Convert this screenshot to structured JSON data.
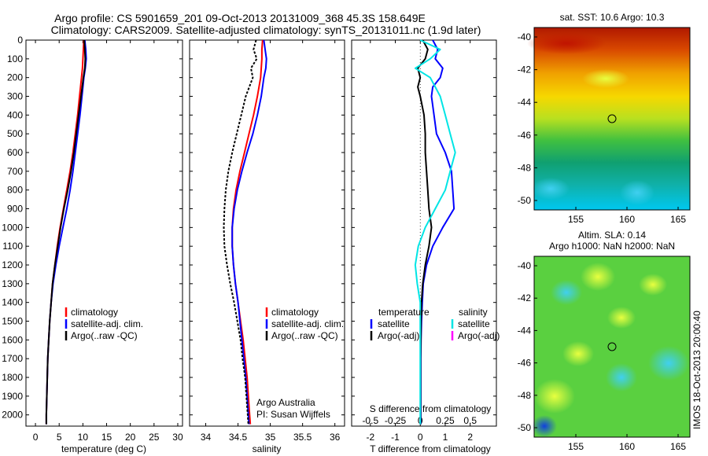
{
  "header": {
    "title_line1": "Argo profile: CS 5901659_201 09-Oct-2013 20131009_368 45.3S 158.649E",
    "title_line2": "Climatology: CARS2009. Satellite-adjusted climatology: synTS_20131011.nc (1.9d later)"
  },
  "colors": {
    "climatology": "#ff0000",
    "satellite": "#0000ff",
    "argo": "#000000",
    "sal_sat": "#00e5e5",
    "sal_argo": "#ff00ff"
  },
  "chart_data": [
    {
      "type": "line",
      "id": "temperature",
      "xlabel": "temperature (deg C)",
      "xlim": [
        -2,
        31
      ],
      "ylim": [
        2060,
        0
      ],
      "xticks": [
        0,
        5,
        10,
        15,
        20,
        25,
        30
      ],
      "yticks": [
        0,
        100,
        200,
        300,
        400,
        500,
        600,
        700,
        800,
        900,
        1000,
        1100,
        1200,
        1300,
        1400,
        1500,
        1600,
        1700,
        1800,
        1900,
        2000
      ],
      "legend": [
        "climatology",
        "satellite-adj. clim.",
        "Argo(..raw -QC)"
      ],
      "series": [
        {
          "name": "climatology",
          "color": "#ff0000",
          "depth": [
            0,
            50,
            100,
            150,
            200,
            300,
            400,
            500,
            600,
            700,
            800,
            900,
            1000,
            1100,
            1200,
            1300,
            1400,
            1500,
            1600,
            1700,
            1800,
            1900,
            2000,
            2050
          ],
          "values": [
            10.2,
            10.1,
            10,
            9.9,
            9.7,
            9.3,
            8.9,
            8.4,
            7.9,
            7.3,
            6.6,
            5.9,
            5.2,
            4.6,
            4.1,
            3.6,
            3.3,
            3,
            2.8,
            2.6,
            2.5,
            2.4,
            2.3,
            2.3
          ]
        },
        {
          "name": "satellite",
          "color": "#0000ff",
          "depth": [
            0,
            50,
            100,
            150,
            200,
            300,
            400,
            500,
            600,
            700,
            800,
            900,
            1000,
            1100,
            1200,
            1300,
            1400,
            1500,
            1600,
            1700,
            1800,
            1900,
            2000,
            2050
          ],
          "values": [
            10.4,
            10.6,
            10.7,
            10.5,
            10.2,
            9.8,
            9.4,
            8.9,
            8.4,
            7.9,
            7.3,
            6.6,
            5.8,
            5,
            4.3,
            3.7,
            3.3,
            3,
            2.8,
            2.6,
            2.5,
            2.4,
            2.3,
            2.3
          ]
        },
        {
          "name": "argo",
          "color": "#000000",
          "depth": [
            0,
            50,
            100,
            150,
            200,
            300,
            400,
            500,
            600,
            700,
            800,
            900,
            1000,
            1100,
            1200,
            1300,
            1400,
            1500,
            1600,
            1700,
            1800,
            1900,
            2000,
            2050
          ],
          "values": [
            10.3,
            10.4,
            10.5,
            10.4,
            10.1,
            9.6,
            9.1,
            8.6,
            8.1,
            7.5,
            6.8,
            6,
            5.3,
            4.7,
            4.1,
            3.6,
            3.3,
            3,
            2.8,
            2.6,
            2.5,
            2.4,
            2.3,
            2.3
          ]
        }
      ]
    },
    {
      "type": "line",
      "id": "salinity",
      "xlabel": "salinity",
      "xlim": [
        33.75,
        36.15
      ],
      "ylim": [
        2060,
        0
      ],
      "xticks": [
        34,
        34.5,
        35,
        35.5,
        36
      ],
      "xticklabels": [
        "34",
        "34.5",
        "35",
        "35.5",
        "36"
      ],
      "legend": [
        "climatology",
        "satellite-adj. clim.",
        "Argo(..raw -QC)"
      ],
      "annotation": [
        "Argo Australia",
        "PI: Susan Wijffels"
      ],
      "series": [
        {
          "name": "climatology",
          "color": "#ff0000",
          "depth": [
            0,
            50,
            100,
            150,
            200,
            300,
            400,
            500,
            600,
            700,
            800,
            900,
            1000,
            1100,
            1200,
            1300,
            1400,
            1500,
            1600,
            1700,
            1800,
            1900,
            2000,
            2050
          ],
          "values": [
            34.88,
            34.87,
            34.87,
            34.86,
            34.85,
            34.8,
            34.74,
            34.67,
            34.6,
            34.53,
            34.47,
            34.43,
            34.41,
            34.41,
            34.43,
            34.46,
            34.5,
            34.54,
            34.58,
            34.61,
            34.64,
            34.66,
            34.68,
            34.69
          ]
        },
        {
          "name": "satellite",
          "color": "#0000ff",
          "depth": [
            0,
            50,
            100,
            150,
            200,
            300,
            400,
            500,
            600,
            700,
            800,
            900,
            1000,
            1100,
            1200,
            1300,
            1400,
            1500,
            1600,
            1700,
            1800,
            1900,
            2000,
            2050
          ],
          "values": [
            34.9,
            34.92,
            34.94,
            34.93,
            34.9,
            34.86,
            34.8,
            34.73,
            34.64,
            34.56,
            34.49,
            34.44,
            34.41,
            34.41,
            34.43,
            34.46,
            34.5,
            34.53,
            34.56,
            34.59,
            34.62,
            34.64,
            34.66,
            34.67
          ]
        },
        {
          "name": "argo",
          "color": "#000000",
          "depth": [
            0,
            50,
            100,
            150,
            200,
            300,
            400,
            500,
            600,
            700,
            800,
            900,
            1000,
            1100,
            1200,
            1300,
            1400,
            1500,
            1600,
            1700,
            1800,
            1900,
            2000,
            2050
          ],
          "values": [
            34.78,
            34.74,
            34.79,
            34.7,
            34.73,
            34.62,
            34.55,
            34.48,
            34.41,
            34.35,
            34.31,
            34.29,
            34.28,
            34.29,
            34.33,
            34.38,
            34.44,
            34.49,
            34.54,
            34.57,
            34.61,
            34.63,
            34.65,
            34.66
          ]
        }
      ]
    },
    {
      "type": "line",
      "id": "difference",
      "xlabel": "T difference from climatology",
      "xlabel_top": "S difference from climatology",
      "xlim": [
        -2.75,
        3.05
      ],
      "ylim": [
        2060,
        0
      ],
      "xticks_T": [
        -2,
        -1,
        0,
        1,
        2
      ],
      "xticks_S": [
        -0.5,
        -0.25,
        0,
        0.25,
        0.5
      ],
      "xticklabels_S": [
        "-0.5",
        "-0.25",
        "0",
        "0.25",
        "0.5"
      ],
      "legend_temperature": {
        "heading": "temperature",
        "items": [
          "satellite",
          "Argo(-adj)"
        ]
      },
      "legend_salinity": {
        "heading": "salinity",
        "items": [
          "satellite",
          "Argo(-adj)"
        ]
      },
      "series": [
        {
          "name": "T satellite",
          "color": "#0000ff",
          "depth": [
            0,
            50,
            100,
            150,
            200,
            250,
            300,
            400,
            500,
            600,
            700,
            800,
            900,
            1000,
            1100,
            1200,
            1300,
            1400,
            1500,
            1600,
            1700,
            1800,
            1900,
            2000,
            2050
          ],
          "values": [
            0.5,
            0.7,
            0.6,
            0.9,
            0.8,
            0.5,
            0.45,
            0.55,
            0.65,
            1.0,
            1.25,
            1.3,
            1.35,
            0.9,
            0.5,
            0.25,
            0.12,
            0.08,
            0.05,
            0.03,
            0.02,
            0.02,
            0.02,
            0.02,
            0.02
          ]
        },
        {
          "name": "T Argo",
          "color": "#000000",
          "depth": [
            0,
            50,
            100,
            150,
            200,
            250,
            300,
            400,
            500,
            600,
            700,
            800,
            900,
            1000,
            1100,
            1200,
            1300,
            1400,
            1500,
            1600,
            1700,
            1800,
            1900,
            2000,
            2050
          ],
          "values": [
            0.1,
            0.3,
            0.2,
            -0.1,
            0.0,
            -0.1,
            0.0,
            0.15,
            0.2,
            0.2,
            0.25,
            0.3,
            0.35,
            0.45,
            0.35,
            0.2,
            0.1,
            0.05,
            0.03,
            0.02,
            0.01,
            0.01,
            0.01,
            0.01,
            0.01
          ]
        },
        {
          "name": "S satellite",
          "color": "#00e5e5",
          "depth": [
            0,
            50,
            100,
            150,
            200,
            250,
            300,
            400,
            500,
            600,
            700,
            800,
            900,
            1000,
            1100,
            1200,
            1300,
            1400,
            1500,
            1600,
            1700,
            1800,
            1900,
            2000,
            2050
          ],
          "values": [
            0.0,
            0.2,
            0.1,
            -0.05,
            0.1,
            0.15,
            0.2,
            0.25,
            0.3,
            0.35,
            0.3,
            0.25,
            0.15,
            0.05,
            -0.02,
            -0.05,
            -0.03,
            0.0,
            0.0,
            0.0,
            0.0,
            0.0,
            0.0,
            0.0,
            0.0
          ]
        }
      ]
    }
  ],
  "maps": {
    "sst": {
      "title": "sat. SST: 10.6  Argo: 10.3",
      "yticks": [
        "-40",
        "-42",
        "-44",
        "-46",
        "-48",
        "-50"
      ],
      "xticks": [
        "155",
        "160",
        "165"
      ]
    },
    "sla": {
      "title_line1": "Altim. SLA: 0.14",
      "title_line2": "Argo h1000: NaN h2000: NaN",
      "yticks": [
        "-40",
        "-42",
        "-44",
        "-46",
        "-48",
        "-50"
      ],
      "xticks": [
        "155",
        "160",
        "165"
      ]
    },
    "credit": "IMOS 18-Oct-2013 20:00:40"
  }
}
